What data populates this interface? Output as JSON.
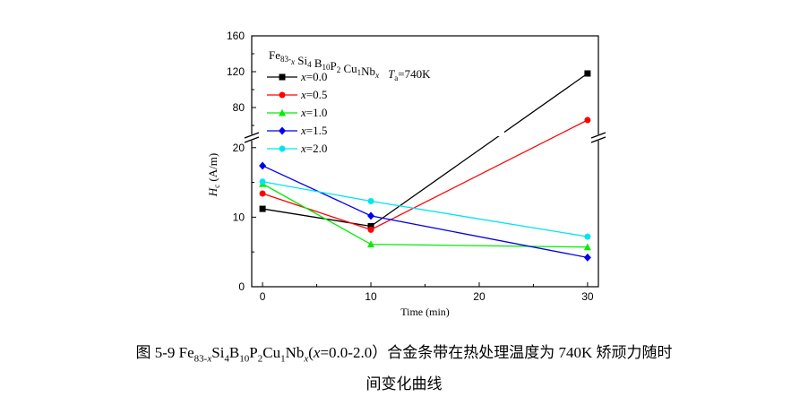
{
  "chart_data": {
    "type": "line",
    "x_label": "Time (min)",
    "y_label_main": "H",
    "y_label_sub": "c",
    "y_label_unit": " (A/m)",
    "x_ticks": [
      0,
      10,
      20,
      30
    ],
    "y_ticks_lower": [
      0,
      10,
      20
    ],
    "y_ticks_upper": [
      80,
      120,
      160
    ],
    "ylim_lower": [
      0,
      21
    ],
    "ylim_upper": [
      50,
      160
    ],
    "xlim": [
      -1,
      31
    ],
    "axis_break": true,
    "legend_title": {
      "composition": [
        {
          "t": "Fe"
        },
        {
          "t": "83-",
          "sub": true
        },
        {
          "t": "x",
          "sub": true,
          "italic": true
        },
        {
          "t": " Si"
        },
        {
          "t": "4",
          "sub": true
        },
        {
          "t": " B"
        },
        {
          "t": "10",
          "sub": true
        },
        {
          "t": "P"
        },
        {
          "t": "2",
          "sub": true
        },
        {
          "t": " Cu"
        },
        {
          "t": "1",
          "sub": true
        },
        {
          "t": "Nb"
        },
        {
          "t": "x",
          "sub": true,
          "italic": true
        }
      ],
      "temp_symbol": "T",
      "temp_sub": "a",
      "temp_value": "=740K"
    },
    "series": [
      {
        "name_var": "x",
        "name_value": "=0.0",
        "color": "#000000",
        "marker": "square",
        "x": [
          0,
          10,
          30
        ],
        "y": [
          11.2,
          8.7,
          118
        ]
      },
      {
        "name_var": "x",
        "name_value": "=0.5",
        "color": "#ff0000",
        "marker": "circle",
        "x": [
          0,
          10,
          30
        ],
        "y": [
          13.4,
          8.2,
          66
        ]
      },
      {
        "name_var": "x",
        "name_value": "=1.0",
        "color": "#00ee00",
        "marker": "triangle",
        "x": [
          0,
          10,
          30
        ],
        "y": [
          14.8,
          6.1,
          5.7
        ]
      },
      {
        "name_var": "x",
        "name_value": "=1.5",
        "color": "#0000ee",
        "marker": "diamond",
        "x": [
          0,
          10,
          30
        ],
        "y": [
          17.4,
          10.2,
          4.2
        ]
      },
      {
        "name_var": "x",
        "name_value": "=2.0",
        "color": "#00e5ee",
        "marker": "circle",
        "x": [
          0,
          10,
          30
        ],
        "y": [
          15.1,
          12.3,
          7.2
        ]
      }
    ]
  },
  "caption": {
    "line1_prefix": "图 5-9 Fe",
    "line1_sub1": "83-",
    "line1_sub1_italic": "x",
    "line1_mid1": "Si",
    "line1_sub2": "4",
    "line1_mid2": "B",
    "line1_sub3": "10",
    "line1_mid3": "P",
    "line1_sub4": "2",
    "line1_mid4": "Cu",
    "line1_sub5": "1",
    "line1_mid5": "Nb",
    "line1_sub6": "x",
    "line1_paren": "(",
    "line1_var": "x",
    "line1_range": "=0.0-2.0）合金条带在热处理温度为 740K 矫顽力随时",
    "line2": "间变化曲线"
  }
}
